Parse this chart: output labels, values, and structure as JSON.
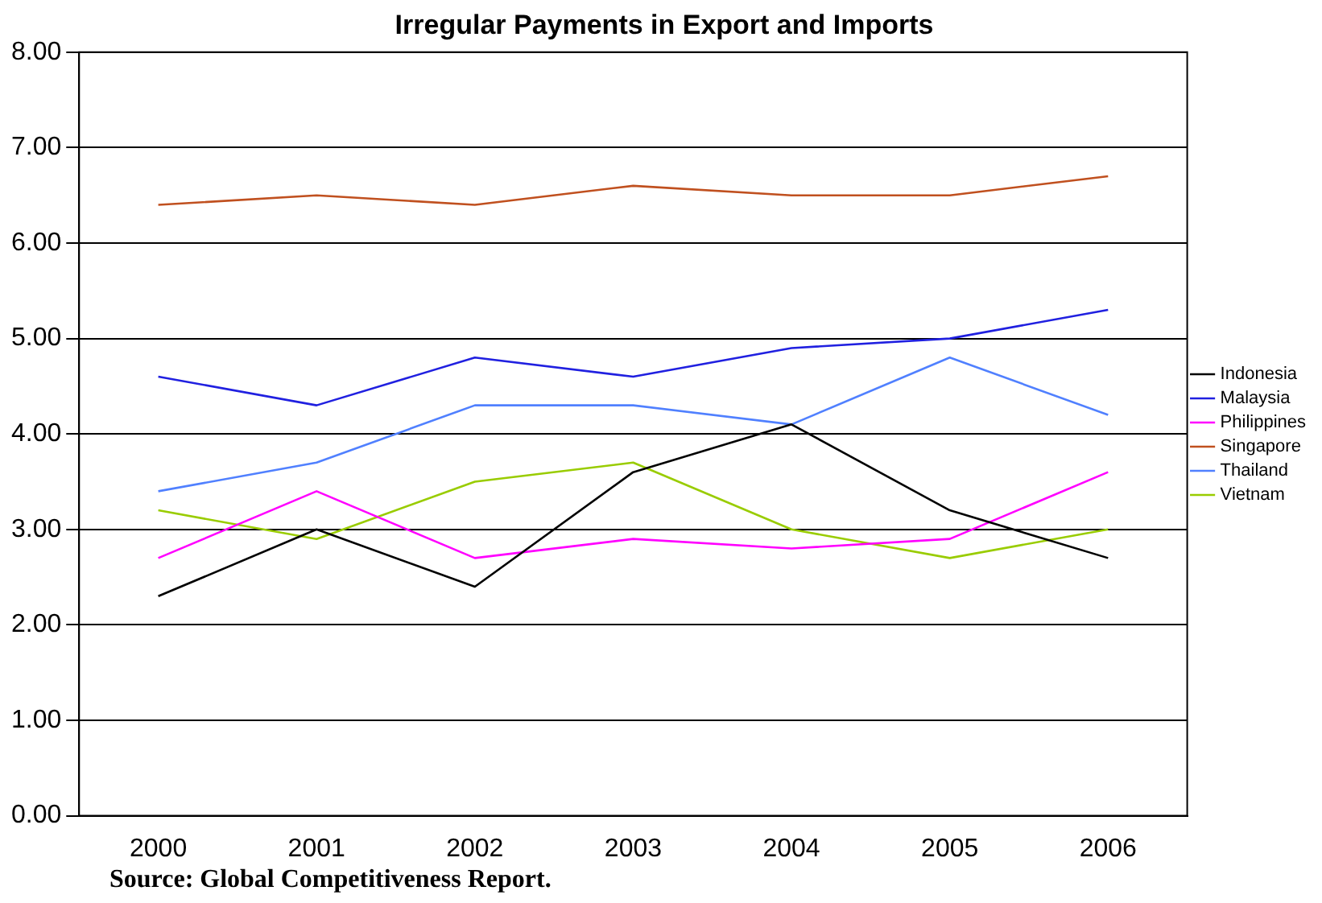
{
  "chart_data": {
    "type": "line",
    "title": "Irregular Payments in Export and Imports",
    "categories": [
      "2000",
      "2001",
      "2002",
      "2003",
      "2004",
      "2005",
      "2006"
    ],
    "series": [
      {
        "name": "Indonesia",
        "color": "#000000",
        "values": [
          2.3,
          3.0,
          2.4,
          3.6,
          4.1,
          3.2,
          2.7
        ]
      },
      {
        "name": "Malaysia",
        "color": "#2020e0",
        "values": [
          4.6,
          4.3,
          4.8,
          4.6,
          4.9,
          5.0,
          5.3
        ]
      },
      {
        "name": "Philippines",
        "color": "#ff00ff",
        "values": [
          2.7,
          3.4,
          2.7,
          2.9,
          2.8,
          2.9,
          3.6
        ]
      },
      {
        "name": "Singapore",
        "color": "#c0501f",
        "values": [
          6.4,
          6.5,
          6.4,
          6.6,
          6.5,
          6.5,
          6.7
        ]
      },
      {
        "name": "Thailand",
        "color": "#5080ff",
        "values": [
          3.4,
          3.7,
          4.3,
          4.3,
          4.1,
          4.8,
          4.2
        ]
      },
      {
        "name": "Vietnam",
        "color": "#99cc00",
        "values": [
          3.2,
          2.9,
          3.5,
          3.7,
          3.0,
          2.7,
          3.0
        ]
      }
    ],
    "ylim": [
      0,
      8
    ],
    "yticks": [
      {
        "value": 0,
        "label": "0.00"
      },
      {
        "value": 1,
        "label": "1.00"
      },
      {
        "value": 2,
        "label": "2.00"
      },
      {
        "value": 3,
        "label": "3.00"
      },
      {
        "value": 4,
        "label": "4.00"
      },
      {
        "value": 5,
        "label": "5.00"
      },
      {
        "value": 6,
        "label": "6.00"
      },
      {
        "value": 7,
        "label": "7.00"
      },
      {
        "value": 8,
        "label": "8.00"
      }
    ],
    "grid": "y",
    "legend": "right",
    "marker": "none",
    "line_style": "solid",
    "annotations": [
      "Source: Global Competitiveness Report."
    ]
  }
}
